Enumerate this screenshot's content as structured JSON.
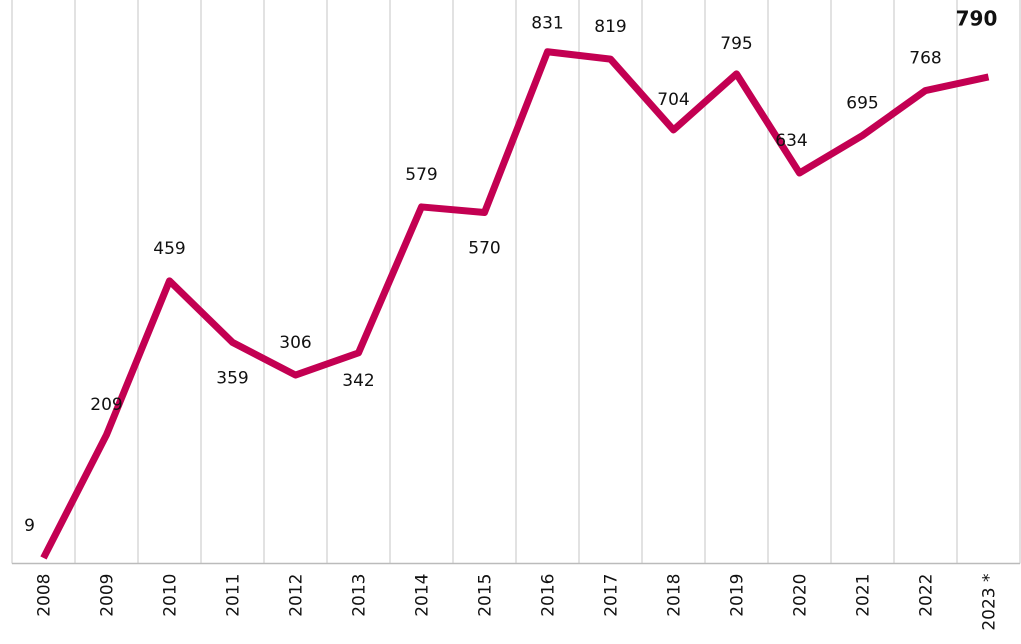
{
  "chart_data": {
    "type": "line",
    "categories": [
      "2008",
      "2009",
      "2010",
      "2011",
      "2012",
      "2013",
      "2014",
      "2015",
      "2016",
      "2017",
      "2018",
      "2019",
      "2020",
      "2021",
      "2022",
      "2023 *"
    ],
    "series": [
      {
        "color": "#c30052",
        "values": [
          9,
          209,
          459,
          359,
          306,
          342,
          579,
          570,
          831,
          819,
          704,
          795,
          634,
          695,
          768,
          790
        ]
      }
    ],
    "ylim": [
      0,
      915
    ]
  }
}
